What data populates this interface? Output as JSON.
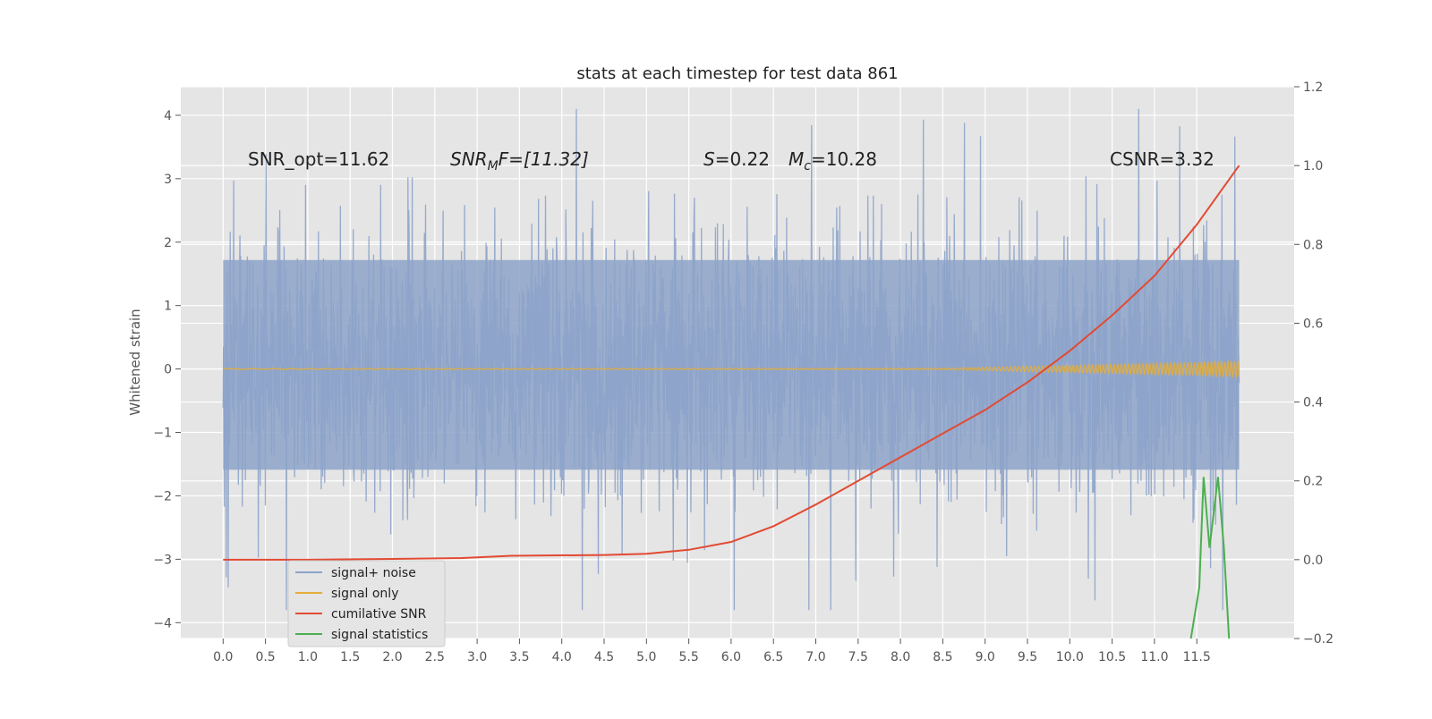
{
  "chart_data": {
    "type": "line",
    "title": "stats at each timestep for test data 861",
    "ylabel": "Whitened strain",
    "xlim": [
      -0.5,
      12.65
    ],
    "ylim": [
      -4.25,
      4.45
    ],
    "y2lim": [
      -0.2,
      1.2
    ],
    "xticks": [
      "0.0",
      "0.5",
      "1.0",
      "1.5",
      "2.0",
      "2.5",
      "3.0",
      "3.5",
      "4.0",
      "4.5",
      "5.0",
      "5.5",
      "6.0",
      "6.5",
      "7.0",
      "7.5",
      "8.0",
      "8.5",
      "9.0",
      "9.5",
      "10.0",
      "10.5",
      "11.0",
      "11.5"
    ],
    "yticks": [
      "4",
      "3",
      "2",
      "1",
      "0",
      "−1",
      "−2",
      "−3",
      "−4"
    ],
    "y2ticks": [
      "1.2",
      "1.0",
      "0.8",
      "0.6",
      "0.4",
      "0.2",
      "0.0",
      "−0.2"
    ],
    "grid": true,
    "legend_position": "lower-left",
    "annotations": {
      "snr_opt": "SNR_opt=11.62",
      "snr_mf_label": "SNR",
      "snr_mf_sub": "M",
      "snr_mf_rest": "F=[11.32]",
      "s_label": "S",
      "s_rest": "=0.22",
      "mc_label": "M",
      "mc_sub": "c",
      "mc_rest": "=10.28",
      "csnr": "CSNR=3.32"
    },
    "series": [
      {
        "name": "signal+ noise",
        "color": "#8da3c9",
        "x_range": [
          0.0,
          12.0
        ],
        "band": [
          -1.8,
          2.0
        ],
        "peak_range": [
          -3.8,
          4.1
        ]
      },
      {
        "name": "signal only",
        "color": "#e5ae38",
        "x": [
          0.0,
          8.5,
          9.5,
          10.5,
          11.5,
          12.0
        ],
        "amplitude": [
          0.005,
          0.01,
          0.04,
          0.07,
          0.1,
          0.12
        ]
      },
      {
        "name": "cumilative SNR",
        "color": "#e24a33",
        "axis": "right",
        "x": [
          0.0,
          1.0,
          2.0,
          2.8,
          3.4,
          4.5,
          5.0,
          5.5,
          6.0,
          6.5,
          7.0,
          7.5,
          8.0,
          8.5,
          9.0,
          9.5,
          10.0,
          10.5,
          11.0,
          11.5,
          12.0
        ],
        "y": [
          0.0,
          0.0,
          0.002,
          0.004,
          0.01,
          0.012,
          0.015,
          0.025,
          0.045,
          0.085,
          0.14,
          0.2,
          0.26,
          0.32,
          0.38,
          0.45,
          0.53,
          0.62,
          0.72,
          0.85,
          1.0
        ]
      },
      {
        "name": "signal statistics",
        "color": "#348abd",
        "axis": "right",
        "x": [
          11.43,
          11.53,
          11.58,
          11.65,
          11.75,
          11.82,
          11.88
        ],
        "y": [
          -0.2,
          -0.07,
          0.21,
          0.03,
          0.21,
          0.03,
          -0.2
        ]
      }
    ]
  }
}
